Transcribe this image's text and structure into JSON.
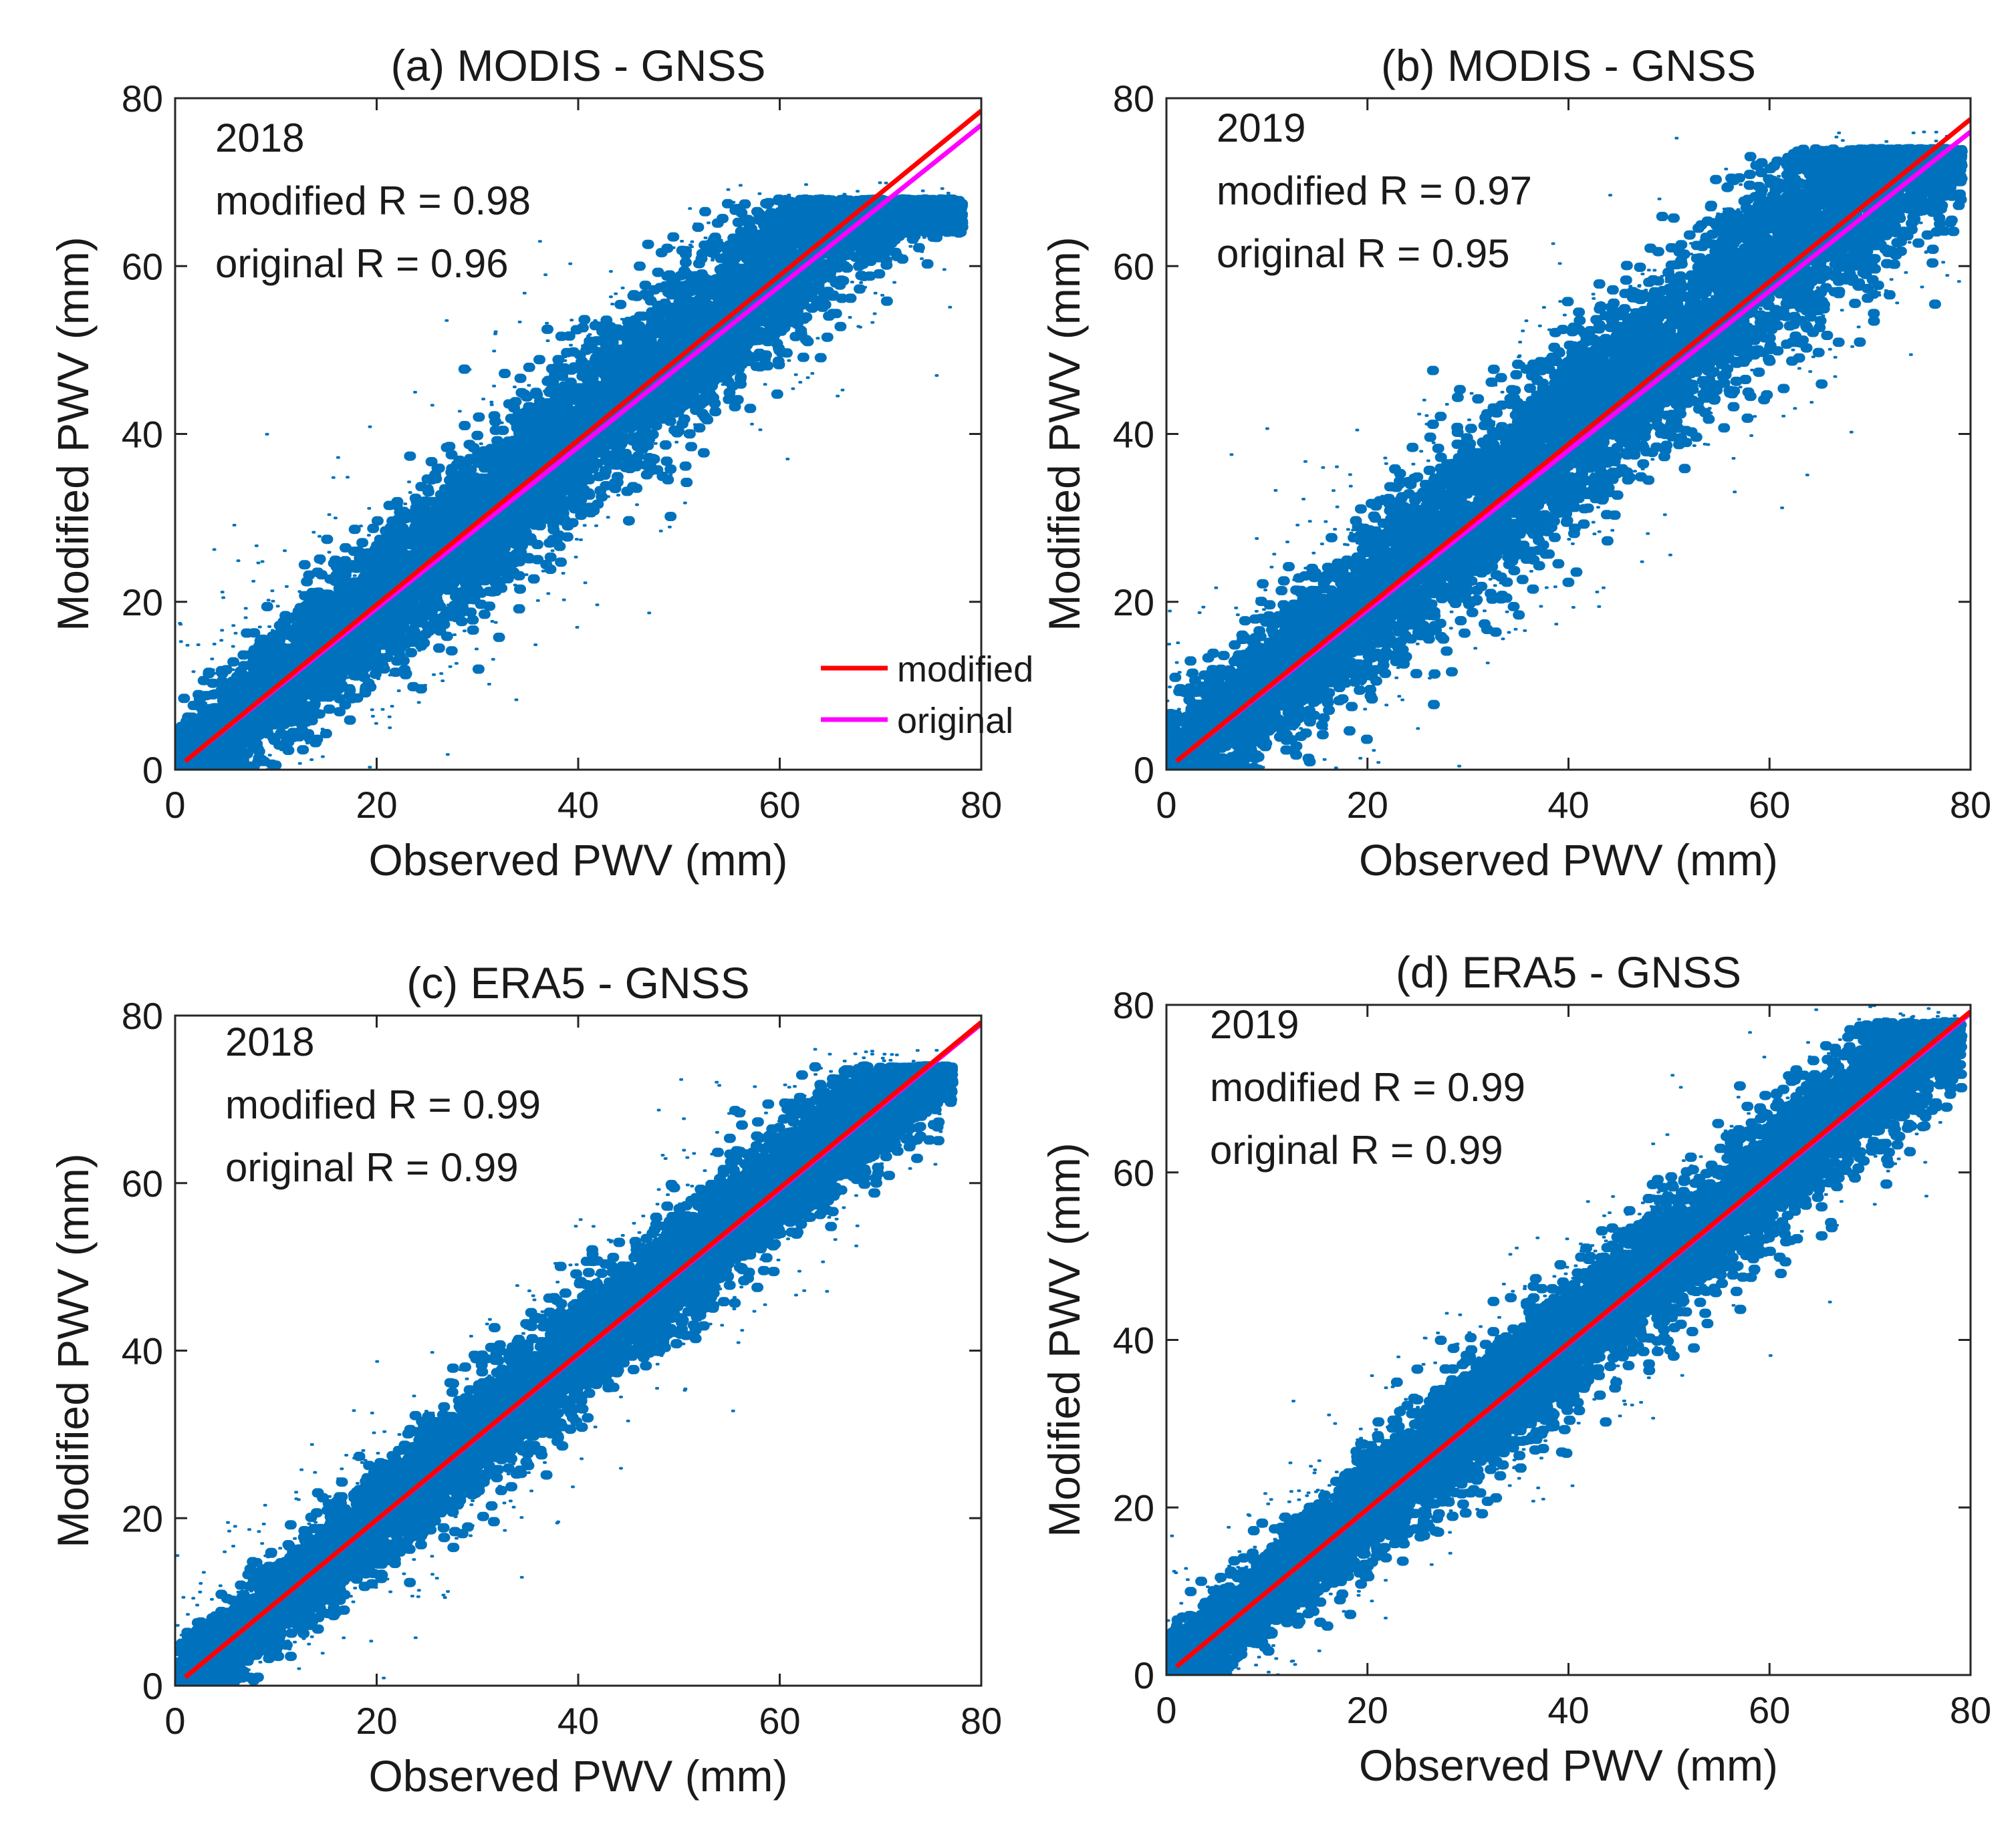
{
  "chart_data": [
    {
      "type": "scatter",
      "title": "(a) MODIS - GNSS",
      "xlabel": "Observed PWV (mm)",
      "ylabel": "Modified PWV (mm)",
      "xlim": [
        0,
        80
      ],
      "ylim": [
        0,
        80
      ],
      "xticks": [
        "0",
        "20",
        "40",
        "60",
        "80"
      ],
      "yticks": [
        "0",
        "20",
        "40",
        "60",
        "80"
      ],
      "annotations": [
        "2018",
        "modified R = 0.98",
        "original R = 0.96"
      ],
      "legend": {
        "placement": "bottom-right",
        "entries": [
          {
            "label": "modified",
            "color": "#ff0000"
          },
          {
            "label": "original",
            "color": "#ff00ff"
          }
        ]
      },
      "scatter": {
        "color": "#0072bd",
        "x_range": [
          0,
          78
        ],
        "spread": 5.0,
        "max_y": 68,
        "count": 7000,
        "seed": 11
      },
      "series": [
        {
          "name": "modified",
          "color": "#ff0000",
          "x": [
            1,
            80
          ],
          "y": [
            1.0,
            78.5
          ]
        },
        {
          "name": "original",
          "color": "#ff00ff",
          "x": [
            1,
            80
          ],
          "y": [
            1.0,
            76.8
          ]
        }
      ]
    },
    {
      "type": "scatter",
      "title": "(b) MODIS - GNSS",
      "xlabel": "Observed PWV (mm)",
      "ylabel": "Modified PWV (mm)",
      "xlim": [
        0,
        80
      ],
      "ylim": [
        0,
        80
      ],
      "xticks": [
        "0",
        "20",
        "40",
        "60",
        "80"
      ],
      "yticks": [
        "0",
        "20",
        "40",
        "60",
        "80"
      ],
      "annotations": [
        "2019",
        "modified R = 0.97",
        "original R = 0.95"
      ],
      "scatter": {
        "color": "#0072bd",
        "x_range": [
          0,
          79
        ],
        "spread": 5.6,
        "max_y": 74,
        "count": 7000,
        "seed": 23
      },
      "series": [
        {
          "name": "modified",
          "color": "#ff0000",
          "x": [
            1,
            80
          ],
          "y": [
            1.0,
            77.5
          ]
        },
        {
          "name": "original",
          "color": "#ff00ff",
          "x": [
            1,
            80
          ],
          "y": [
            1.0,
            76.0
          ]
        }
      ]
    },
    {
      "type": "scatter",
      "title": "(c) ERA5 - GNSS",
      "xlabel": "Observed PWV (mm)",
      "ylabel": "Modified PWV (mm)",
      "xlim": [
        0,
        80
      ],
      "ylim": [
        0,
        80
      ],
      "xticks": [
        "0",
        "20",
        "40",
        "60",
        "80"
      ],
      "yticks": [
        "0",
        "20",
        "40",
        "60",
        "80"
      ],
      "annotations": [
        "2018",
        "modified R = 0.99",
        "original R = 0.99"
      ],
      "scatter": {
        "color": "#0072bd",
        "x_range": [
          0,
          77
        ],
        "spread": 3.6,
        "max_y": 74,
        "count": 7000,
        "seed": 37
      },
      "series": [
        {
          "name": "modified",
          "color": "#ff0000",
          "x": [
            1,
            80
          ],
          "y": [
            1.0,
            79.2
          ]
        },
        {
          "name": "original",
          "color": "#ff00ff",
          "x": [
            1,
            80
          ],
          "y": [
            1.0,
            79.0
          ]
        }
      ]
    },
    {
      "type": "scatter",
      "title": "(d) ERA5 - GNSS",
      "xlabel": "Observed PWV (mm)",
      "ylabel": "Modified PWV (mm)",
      "xlim": [
        0,
        80
      ],
      "ylim": [
        0,
        80
      ],
      "xticks": [
        "0",
        "20",
        "40",
        "60",
        "80"
      ],
      "yticks": [
        "0",
        "20",
        "40",
        "60",
        "80"
      ],
      "annotations": [
        "2019",
        "modified R = 0.99",
        "original R  = 0.99"
      ],
      "scatter": {
        "color": "#0072bd",
        "x_range": [
          0,
          79
        ],
        "spread": 3.9,
        "max_y": 78,
        "count": 7000,
        "seed": 53
      },
      "series": [
        {
          "name": "modified",
          "color": "#ff0000",
          "x": [
            1,
            80
          ],
          "y": [
            1.0,
            79.2
          ]
        },
        {
          "name": "original",
          "color": "#ff00ff",
          "x": [
            1,
            80
          ],
          "y": [
            1.0,
            79.0
          ]
        }
      ]
    }
  ]
}
